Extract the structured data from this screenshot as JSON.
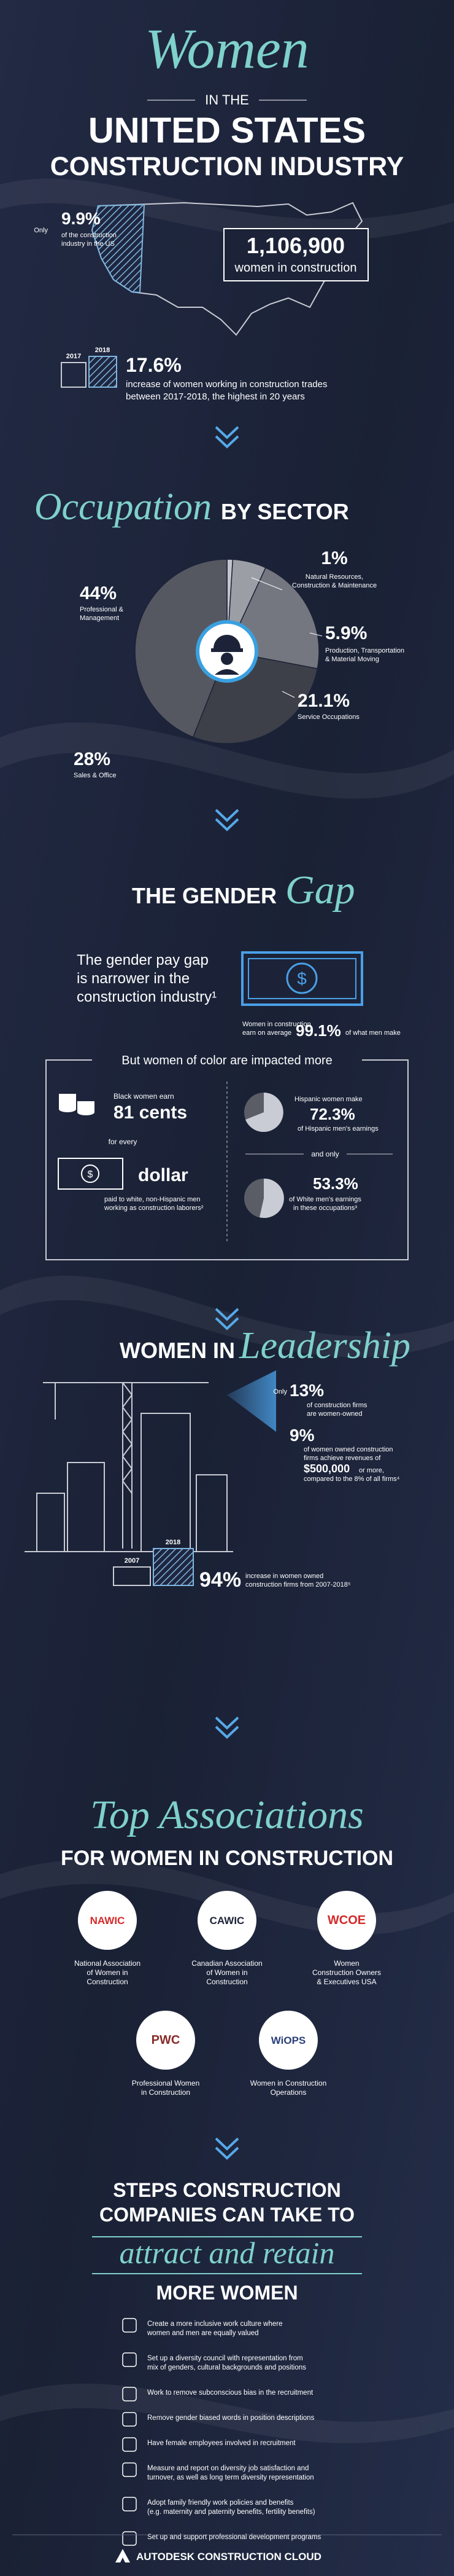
{
  "header": {
    "title_script": "Women",
    "in_the": "IN THE",
    "title_line1": "UNITED STATES",
    "title_line2": "CONSTRUCTION INDUSTRY"
  },
  "overview": {
    "share_prefix": "Only",
    "share": "9.9%",
    "share_desc": [
      "of the construction",
      "industry in the US"
    ],
    "count": "1,106,900",
    "count_desc": "women in construction",
    "bar_labels": [
      "2017",
      "2018"
    ],
    "increase": "17.6%",
    "increase_desc": [
      "increase of women working in construction trades",
      "between 2017-2018, the highest in 20 years"
    ]
  },
  "sector": {
    "title_script": "Occupation",
    "title": "BY SECTOR",
    "slices": [
      {
        "value": 1,
        "value_label": "1%",
        "label": [
          "Natural Resources,",
          "Construction & Maintenance"
        ],
        "color": "#c3c5cb"
      },
      {
        "value": 5.9,
        "value_label": "5.9%",
        "label": [
          "Production, Transportation",
          "& Material Moving"
        ],
        "color": "#9c9ea6"
      },
      {
        "value": 21.1,
        "value_label": "21.1%",
        "label": [
          "Service Occupations"
        ],
        "color": "#74777f"
      },
      {
        "value": 28,
        "value_label": "28%",
        "label": [
          "Sales & Office"
        ],
        "color": "#3d4049"
      },
      {
        "value": 44,
        "value_label": "44%",
        "label": [
          "Professional &",
          "Management"
        ],
        "color": "#555861"
      }
    ]
  },
  "gender_gap": {
    "title": "THE GENDER",
    "title_script": "Gap",
    "intro": [
      "The gender pay gap",
      "is narrower in the",
      "construction industry¹"
    ],
    "earn_desc": [
      "Women in construction",
      "earn on average"
    ],
    "earn": "99.1%",
    "earn_suffix": "of what men make",
    "color_title": "But women of color are impacted more",
    "black_prefix": "Black women earn",
    "black_value": "81 cents",
    "for_every": "for every",
    "dollar": "dollar",
    "black_desc": [
      "paid to white, non-Hispanic men",
      "working as construction laborers²"
    ],
    "hispanic_prefix": "Hispanic women make",
    "hispanic_value": "72.3%",
    "hispanic_desc": "of Hispanic men's earnings",
    "and_only": "and only",
    "white_value": "53.3%",
    "white_desc": [
      "of White men's earnings",
      "in these occupations³"
    ]
  },
  "leadership": {
    "title": "WOMEN IN",
    "title_script": "Leadership",
    "owned_prefix": "Only",
    "owned": "13%",
    "owned_desc": [
      "of construction firms",
      "are women-owned"
    ],
    "revenue": "9%",
    "revenue_desc": [
      "of women owned construction",
      "firms achieve revenues of"
    ],
    "revenue_amount": "$500,000",
    "revenue_suffix": "or more,",
    "revenue_compare": "compared to the 8% of all firms⁴",
    "bar_labels": [
      "2007",
      "2018"
    ],
    "growth": "94%",
    "growth_desc": [
      "increase in women owned",
      "construction firms from 2007-2018⁵"
    ]
  },
  "associations": {
    "title_script": "Top Associations",
    "title": "FOR WOMEN IN CONSTRUCTION",
    "items": [
      {
        "logo": "NAWIC",
        "name": [
          "National Association",
          "of Women in",
          "Construction"
        ]
      },
      {
        "logo": "CAWIC",
        "name": [
          "Canadian Association",
          "of Women in",
          "Construction"
        ]
      },
      {
        "logo": "WCOE",
        "name": [
          "Women",
          "Construction Owners",
          "& Executives USA"
        ]
      },
      {
        "logo": "PWC",
        "name": [
          "Professional Women",
          "in Construction"
        ]
      },
      {
        "logo": "WiOPS",
        "name": [
          "Women in Construction",
          "Operations"
        ]
      }
    ]
  },
  "steps": {
    "title_line1": "STEPS CONSTRUCTION",
    "title_line2": "COMPANIES CAN TAKE TO",
    "title_script": "attract and retain",
    "title_line3": "MORE WOMEN",
    "items": [
      [
        "Create a more inclusive work culture where",
        "women and men are equally valued"
      ],
      [
        "Set up a diversity council with representation from",
        "mix of genders, cultural backgrounds and positions"
      ],
      [
        "Work to remove subconscious bias in the recruitment"
      ],
      [
        "Remove gender biased words in position descriptions"
      ],
      [
        "Have female employees involved in recruitment"
      ],
      [
        "Measure and report on diversity job satisfaction and",
        "turnover, as well as long term diversity representation"
      ],
      [
        "Adopt family friendly work policies and benefits",
        "(e.g. maternity and paternity benefits, fertility benefits)"
      ],
      [
        "Set up and support professional development programs"
      ]
    ]
  },
  "footer": {
    "brand": "AUTODESK CONSTRUCTION CLOUD"
  }
}
